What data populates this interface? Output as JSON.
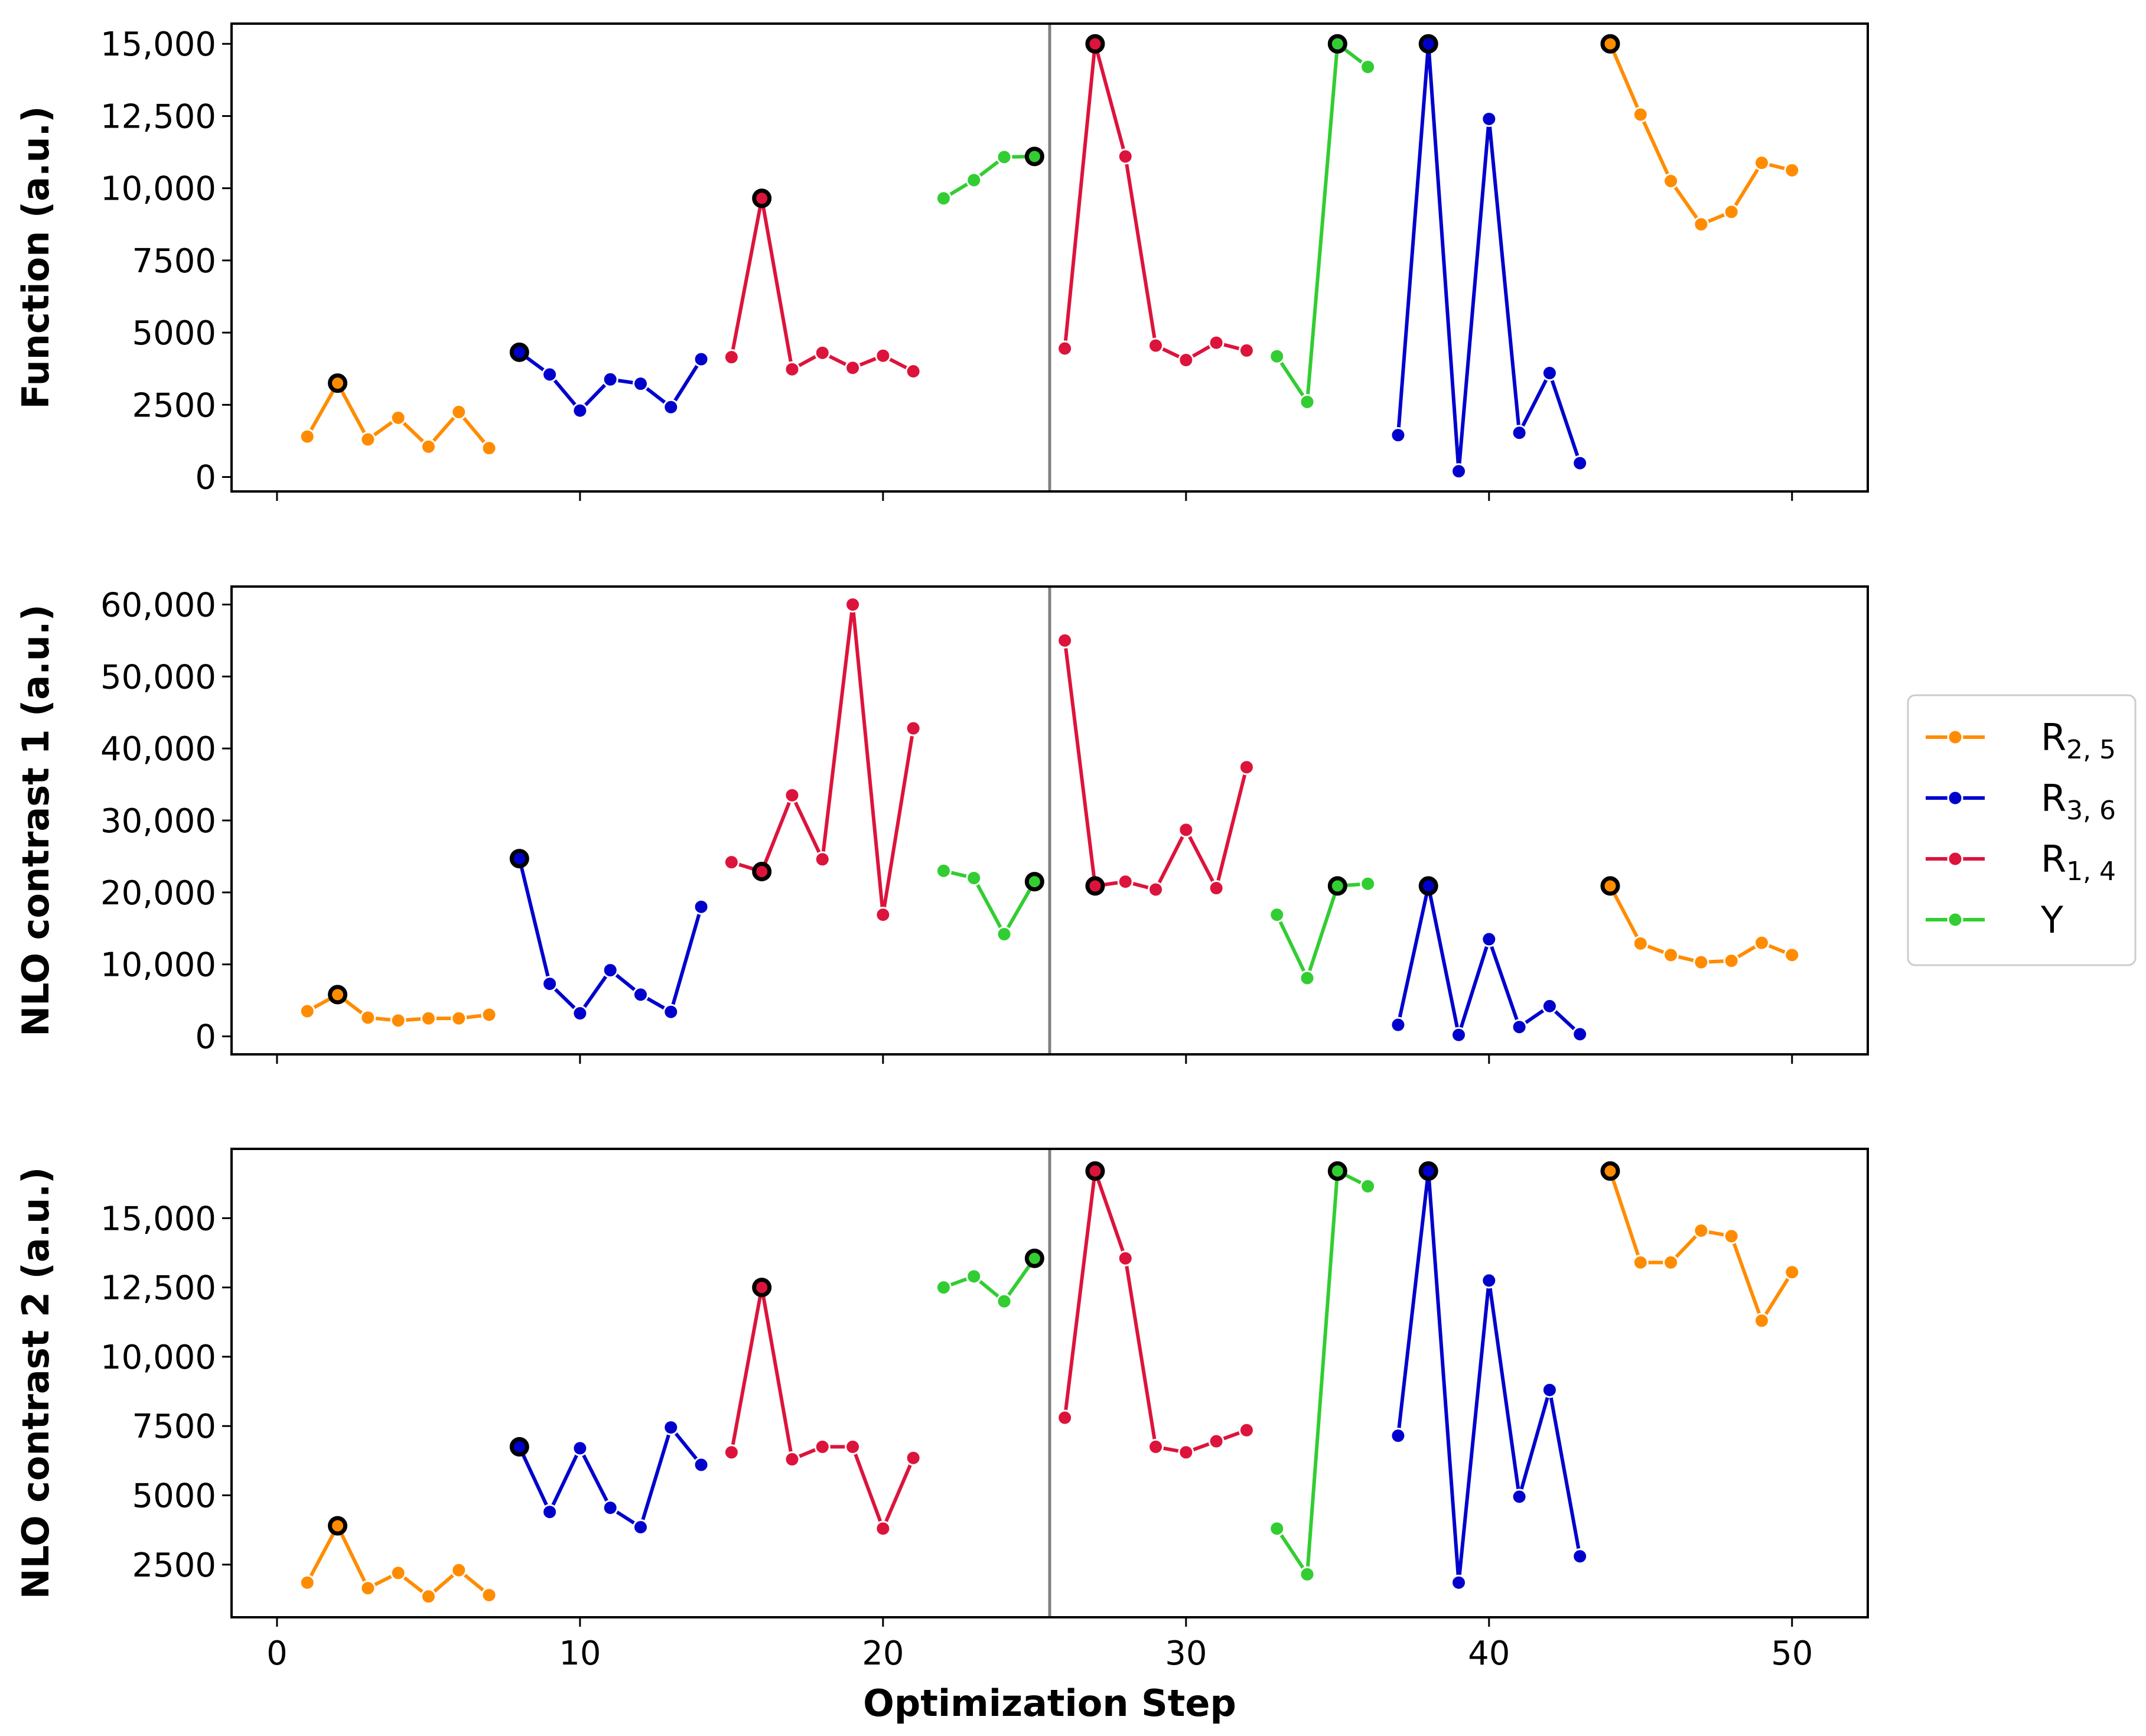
{
  "colors": {
    "R25": "#ff8c00",
    "R36": "#0000cd",
    "R14": "#dc143c",
    "Y": "#32cd32",
    "divider": "#808080",
    "highlight_edge": "#000000"
  },
  "legend": {
    "entries": [
      {
        "key": "R25",
        "main": "R",
        "sub": "2, 5"
      },
      {
        "key": "R36",
        "main": "R",
        "sub": "3, 6"
      },
      {
        "key": "R14",
        "main": "R",
        "sub": "1, 4"
      },
      {
        "key": "Y",
        "main": "Y",
        "sub": ""
      }
    ]
  },
  "chart_data": {
    "type": "line",
    "xlabel": "Optimization Step",
    "xlim": [
      -1.5,
      52.5
    ],
    "xticks": [
      0,
      10,
      20,
      30,
      40,
      50
    ],
    "xtick_labels": [
      "0",
      "10",
      "20",
      "30",
      "40",
      "50"
    ],
    "divider_x": 25.5,
    "panels": [
      {
        "ylabel": "Function (a.u.)",
        "ylim": [
          -500,
          15700
        ],
        "yticks": [
          0,
          2500,
          5000,
          7500,
          10000,
          12500,
          15000
        ],
        "ytick_labels": [
          "0",
          "2500",
          "5000",
          "7500",
          "10,000",
          "12,500",
          "15,000"
        ],
        "series": [
          {
            "group": "R25",
            "x": [
              1,
              2,
              3,
              4,
              5,
              6,
              7
            ],
            "y": [
              1400,
              3250,
              1300,
              2050,
              1050,
              2250,
              1000
            ],
            "highlight": [
              2
            ]
          },
          {
            "group": "R36",
            "x": [
              8,
              9,
              10,
              11,
              12,
              13,
              14
            ],
            "y": [
              4320,
              3550,
              2300,
              3380,
              3230,
              2420,
              4080
            ],
            "highlight": [
              8
            ]
          },
          {
            "group": "R14",
            "x": [
              15,
              16,
              17,
              18,
              19,
              20,
              21
            ],
            "y": [
              4150,
              9650,
              3730,
              4300,
              3780,
              4200,
              3660
            ],
            "highlight": [
              16
            ]
          },
          {
            "group": "Y",
            "x": [
              22,
              23,
              24,
              25
            ],
            "y": [
              9650,
              10280,
              11080,
              11100
            ],
            "highlight": [
              25
            ]
          },
          {
            "group": "R14",
            "x": [
              26,
              27,
              28,
              29,
              30,
              31,
              32
            ],
            "y": [
              4450,
              15000,
              11100,
              4550,
              4050,
              4650,
              4380
            ],
            "highlight": [
              27
            ]
          },
          {
            "group": "Y",
            "x": [
              33,
              34,
              35,
              36
            ],
            "y": [
              4180,
              2600,
              15000,
              14200
            ],
            "highlight": [
              35
            ]
          },
          {
            "group": "R36",
            "x": [
              37,
              38,
              39,
              40,
              41,
              42,
              43
            ],
            "y": [
              1450,
              15000,
              200,
              12400,
              1530,
              3600,
              480
            ],
            "highlight": [
              38
            ]
          },
          {
            "group": "R25",
            "x": [
              44,
              45,
              46,
              47,
              48,
              49,
              50
            ],
            "y": [
              15000,
              12550,
              10250,
              8750,
              9180,
              10880,
              10620
            ],
            "highlight": [
              44
            ]
          }
        ]
      },
      {
        "ylabel": "NLO contrast 1 (a.u.)",
        "ylim": [
          -2500,
          62500
        ],
        "yticks": [
          0,
          10000,
          20000,
          30000,
          40000,
          50000,
          60000
        ],
        "ytick_labels": [
          "0",
          "10,000",
          "20,000",
          "30,000",
          "40,000",
          "50,000",
          "60,000"
        ],
        "series": [
          {
            "group": "R25",
            "x": [
              1,
              2,
              3,
              4,
              5,
              6,
              7
            ],
            "y": [
              3500,
              5800,
              2600,
              2200,
              2500,
              2500,
              3000
            ],
            "highlight": [
              2
            ]
          },
          {
            "group": "R36",
            "x": [
              8,
              9,
              10,
              11,
              12,
              13,
              14
            ],
            "y": [
              24700,
              7300,
              3200,
              9200,
              5800,
              3400,
              18000
            ],
            "highlight": [
              8
            ]
          },
          {
            "group": "R14",
            "x": [
              15,
              16,
              17,
              18,
              19,
              20,
              21
            ],
            "y": [
              24200,
              22900,
              33500,
              24600,
              60000,
              16900,
              42800
            ],
            "highlight": [
              16
            ]
          },
          {
            "group": "Y",
            "x": [
              22,
              23,
              24,
              25
            ],
            "y": [
              23000,
              22000,
              14200,
              21500
            ],
            "highlight": [
              25
            ]
          },
          {
            "group": "R14",
            "x": [
              26,
              27,
              28,
              29,
              30,
              31,
              32
            ],
            "y": [
              55000,
              20900,
              21500,
              20400,
              28700,
              20600,
              37400
            ],
            "highlight": [
              27
            ]
          },
          {
            "group": "Y",
            "x": [
              33,
              34,
              35,
              36
            ],
            "y": [
              16900,
              8100,
              20900,
              21200
            ],
            "highlight": [
              35
            ]
          },
          {
            "group": "R36",
            "x": [
              37,
              38,
              39,
              40,
              41,
              42,
              43
            ],
            "y": [
              1600,
              20900,
              200,
              13500,
              1300,
              4200,
              300
            ],
            "highlight": [
              38
            ]
          },
          {
            "group": "R25",
            "x": [
              44,
              45,
              46,
              47,
              48,
              49,
              50
            ],
            "y": [
              20900,
              12900,
              11300,
              10300,
              10500,
              13000,
              11300
            ],
            "highlight": [
              44
            ]
          }
        ]
      },
      {
        "ylabel": "NLO contrast 2 (a.u.)",
        "ylim": [
          600,
          17500
        ],
        "yticks": [
          2500,
          5000,
          7500,
          10000,
          12500,
          15000
        ],
        "ytick_labels": [
          "2500",
          "5000",
          "7500",
          "10,000",
          "12,500",
          "15,000"
        ],
        "series": [
          {
            "group": "R25",
            "x": [
              1,
              2,
              3,
              4,
              5,
              6,
              7
            ],
            "y": [
              1850,
              3900,
              1650,
              2200,
              1350,
              2300,
              1400
            ],
            "highlight": [
              2
            ]
          },
          {
            "group": "R36",
            "x": [
              8,
              9,
              10,
              11,
              12,
              13,
              14
            ],
            "y": [
              6750,
              4400,
              6700,
              4550,
              3850,
              7450,
              6100
            ],
            "highlight": [
              8
            ]
          },
          {
            "group": "R14",
            "x": [
              15,
              16,
              17,
              18,
              19,
              20,
              21
            ],
            "y": [
              6550,
              12500,
              6300,
              6750,
              6750,
              3800,
              6350
            ],
            "highlight": [
              16
            ]
          },
          {
            "group": "Y",
            "x": [
              22,
              23,
              24,
              25
            ],
            "y": [
              12500,
              12900,
              12000,
              13550
            ],
            "highlight": [
              25
            ]
          },
          {
            "group": "R14",
            "x": [
              26,
              27,
              28,
              29,
              30,
              31,
              32
            ],
            "y": [
              7800,
              16700,
              13550,
              6750,
              6550,
              6950,
              7350
            ],
            "highlight": [
              27
            ]
          },
          {
            "group": "Y",
            "x": [
              33,
              34,
              35,
              36
            ],
            "y": [
              3800,
              2150,
              16700,
              16150
            ],
            "highlight": [
              35
            ]
          },
          {
            "group": "R36",
            "x": [
              37,
              38,
              39,
              40,
              41,
              42,
              43
            ],
            "y": [
              7150,
              16700,
              1850,
              12750,
              4950,
              8800,
              2800
            ],
            "highlight": [
              38
            ]
          },
          {
            "group": "R25",
            "x": [
              44,
              45,
              46,
              47,
              48,
              49,
              50
            ],
            "y": [
              16700,
              13400,
              13400,
              14550,
              14350,
              11300,
              13050
            ],
            "highlight": [
              44
            ]
          }
        ]
      }
    ]
  }
}
